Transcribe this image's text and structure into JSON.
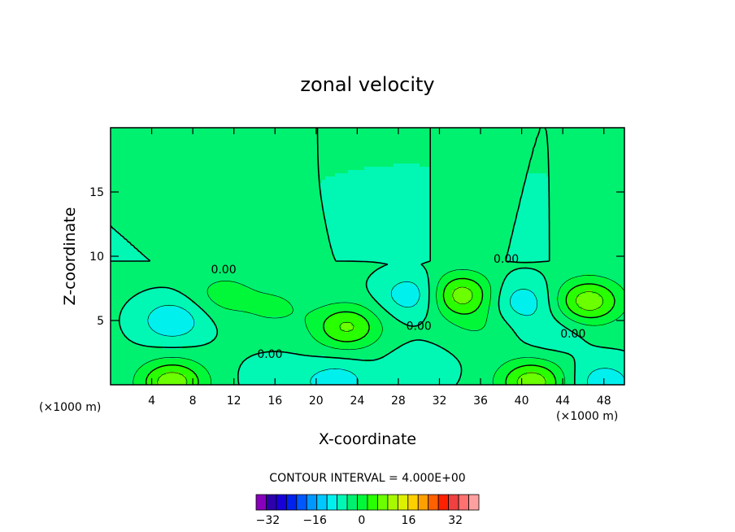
{
  "chart_data": {
    "type": "heatmap",
    "title": "zonal velocity",
    "xlabel": "X-coordinate",
    "ylabel": "Z-coordinate",
    "x_units": "(×1000 m)",
    "y_units": "(×1000 m)",
    "xlim": [
      0,
      50
    ],
    "ylim": [
      0,
      20
    ],
    "x_ticks": [
      "4",
      "8",
      "12",
      "16",
      "20",
      "24",
      "28",
      "32",
      "36",
      "40",
      "44",
      "48"
    ],
    "y_ticks": [
      "5",
      "10",
      "15"
    ],
    "contour_interval_text": "CONTOUR INTERVAL = 4.000E+00",
    "contour_label": "0.00",
    "colorbar": {
      "min": -36,
      "max": 40,
      "step": 4,
      "tick_labels": [
        "-32",
        "-16",
        "0",
        "16",
        "32"
      ],
      "colors": [
        "#8800bb",
        "#2c00aa",
        "#1800d8",
        "#0022ee",
        "#0058ff",
        "#0098ff",
        "#00c8ff",
        "#00f0ee",
        "#00f8b4",
        "#00f070",
        "#00f838",
        "#28ff00",
        "#6cff00",
        "#a8f800",
        "#dcf000",
        "#ffd000",
        "#ffa000",
        "#ff6000",
        "#ff2000",
        "#f04040",
        "#ff7070",
        "#ffa0a0"
      ]
    },
    "features": [
      {
        "x": 20,
        "z": 19,
        "value": 0
      },
      {
        "x": 26,
        "z": 13,
        "value": 0
      },
      {
        "x": 46,
        "z": 16,
        "value": 0
      },
      {
        "x": 6,
        "z": 5,
        "value": -8
      },
      {
        "x": 23,
        "z": 4.5,
        "value": 12
      },
      {
        "x": 29.5,
        "z": 7,
        "value": -8
      },
      {
        "x": 34,
        "z": 7,
        "value": 14
      },
      {
        "x": 40,
        "z": 6.5,
        "value": -7
      },
      {
        "x": 46.5,
        "z": 6.5,
        "value": 14
      },
      {
        "x": 6,
        "z": 0.2,
        "value": 14
      },
      {
        "x": 41,
        "z": 0.2,
        "value": 14
      },
      {
        "x": 22,
        "z": 0.2,
        "value": -7
      },
      {
        "x": 48,
        "z": 0.2,
        "value": -7
      },
      {
        "x": 16,
        "z": 0.5,
        "value": -3
      },
      {
        "x": 30,
        "z": 1.2,
        "value": -4
      },
      {
        "x": 11,
        "z": 7,
        "value": 5
      },
      {
        "x": 16,
        "z": 6,
        "value": 4
      },
      {
        "x": 43,
        "z": 4,
        "value": -3
      },
      {
        "x": 36,
        "z": 4.5,
        "value": 3
      }
    ]
  }
}
